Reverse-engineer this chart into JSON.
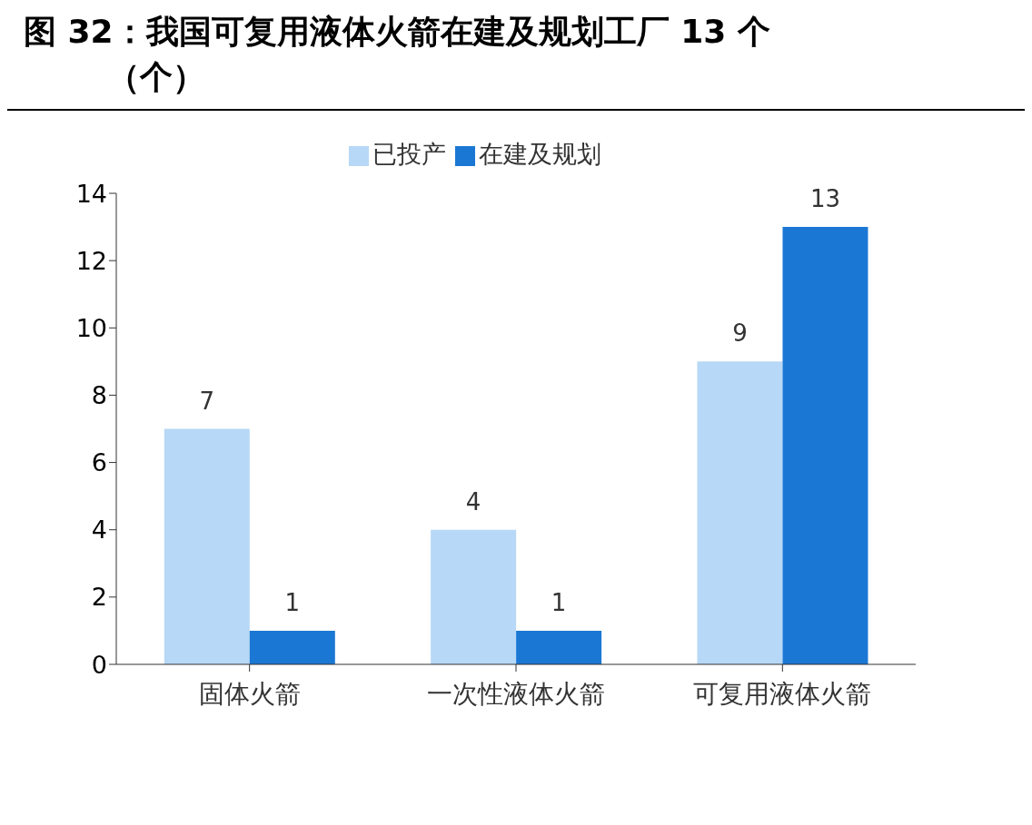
{
  "chart_data": {
    "type": "bar",
    "title": "图 32：我国可复用液体火箭在建及规划工厂 13 个",
    "subtitle": "（个）",
    "categories": [
      "固体火箭",
      "一次性液体火箭",
      "可复用液体火箭"
    ],
    "series": [
      {
        "name": "已投产",
        "color": "#b7d8f6",
        "values": [
          7,
          4,
          9
        ]
      },
      {
        "name": "在建及规划",
        "color": "#1a78d4",
        "values": [
          1,
          1,
          13
        ]
      }
    ],
    "ylim": [
      0,
      14
    ],
    "yticks": [
      0,
      2,
      4,
      6,
      8,
      10,
      12,
      14
    ],
    "grid": false,
    "legend": "top",
    "data_labels": true
  }
}
